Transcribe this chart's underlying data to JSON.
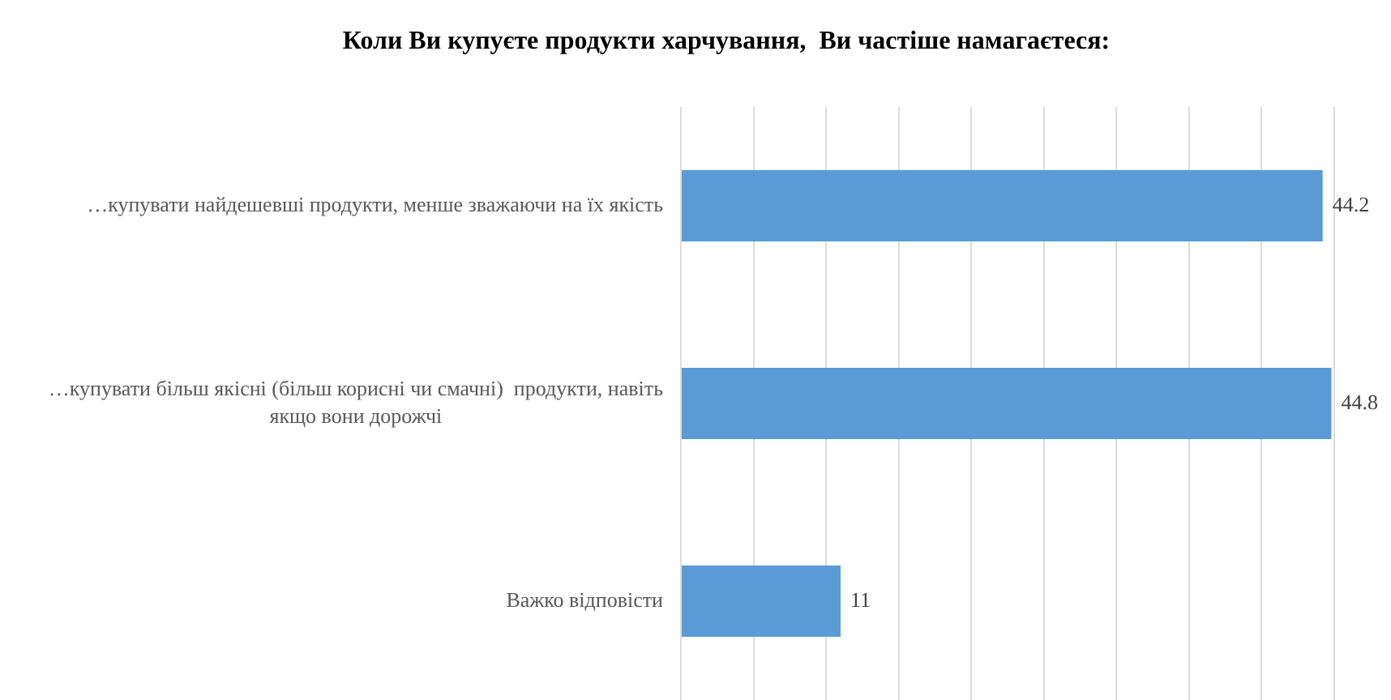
{
  "chart_data": {
    "type": "bar",
    "orientation": "horizontal",
    "title": "Коли Ви купуєте продукти харчування,  Ви частіше намагаєтеся:",
    "categories": [
      "…купувати найдешевші продукти, менше зважаючи на їх якість",
      "…купувати більш якісні (більш корисні чи смачні)  продукти, навіть якщо вони дорожчі",
      "Важко відповісти"
    ],
    "values": [
      44.2,
      44.8,
      11
    ],
    "color": "#5b9bd5",
    "xlim": [
      0,
      45
    ],
    "xticks": [
      {
        "value": 0,
        "label": null
      },
      {
        "value": 5,
        "label": null
      },
      {
        "value": 10,
        "label": null
      },
      {
        "value": 15,
        "label": null
      },
      {
        "value": 20,
        "label": null
      },
      {
        "value": 25,
        "label": null
      },
      {
        "value": 30,
        "label": null
      },
      {
        "value": 35,
        "label": null
      },
      {
        "value": 40,
        "label": null
      },
      {
        "value": 45,
        "label": null
      }
    ],
    "grid": "x",
    "tick_labels": "y",
    "data_labels": true
  }
}
